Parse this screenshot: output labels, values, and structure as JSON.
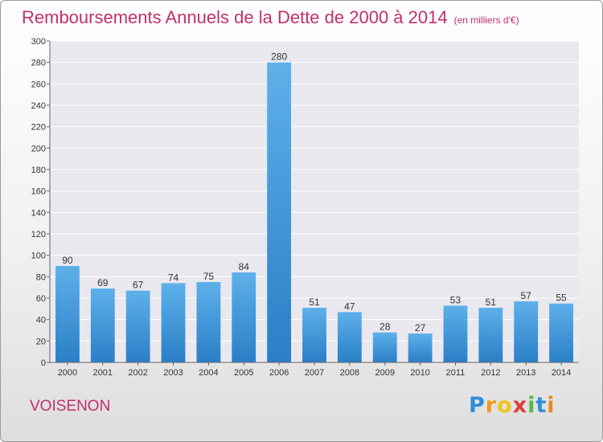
{
  "title": "Remboursements Annuels de la Dette de 2000 à 2014",
  "unit": "(en milliers d'€)",
  "location": "VOISENON",
  "logo": {
    "letters": [
      "P",
      "r",
      "o",
      "x",
      "i",
      "t",
      "i"
    ],
    "colors": [
      "#2f8fd8",
      "#f39a1a",
      "#f0c419",
      "#e03c3c",
      "#56b84a",
      "#2f8fd8",
      "#e68a1f"
    ]
  },
  "chart_data": {
    "type": "bar",
    "categories": [
      "2000",
      "2001",
      "2002",
      "2003",
      "2004",
      "2005",
      "2006",
      "2007",
      "2008",
      "2009",
      "2010",
      "2011",
      "2012",
      "2013",
      "2014"
    ],
    "values": [
      90,
      69,
      67,
      74,
      75,
      84,
      280,
      51,
      47,
      28,
      27,
      53,
      51,
      57,
      55
    ],
    "ylim": [
      0,
      300
    ],
    "yticks": [
      0,
      20,
      40,
      60,
      80,
      100,
      120,
      140,
      160,
      180,
      200,
      220,
      240,
      260,
      280,
      300
    ],
    "grid": true,
    "bar_color": "#3d95db"
  }
}
